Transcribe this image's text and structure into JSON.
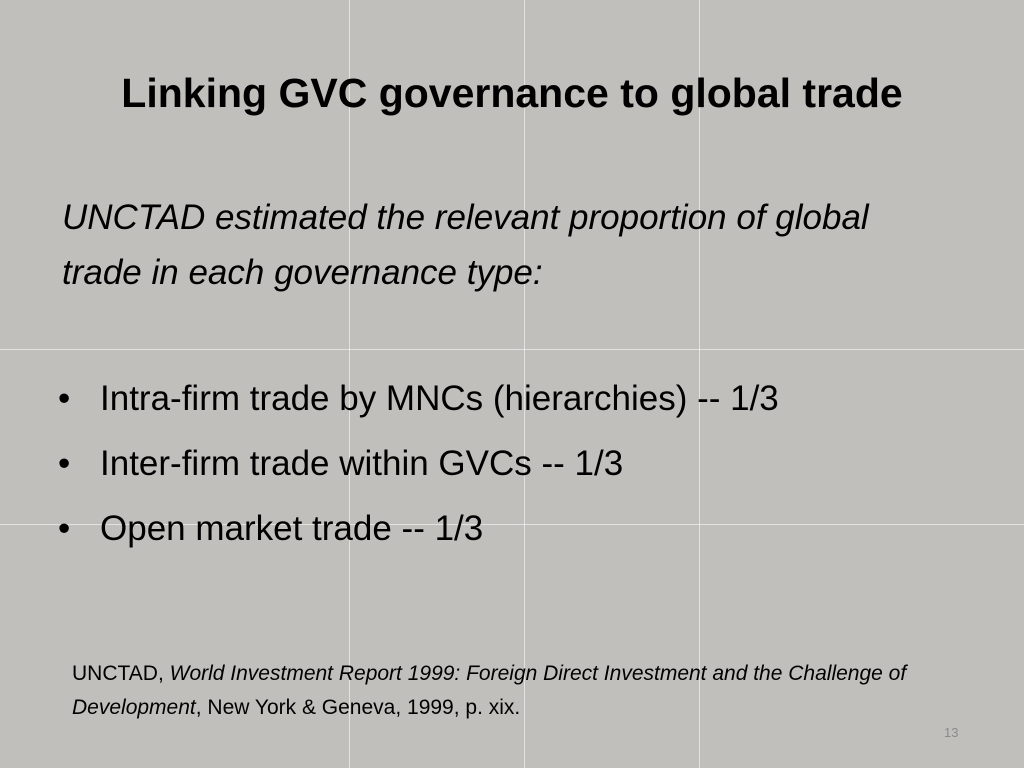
{
  "slide": {
    "title": "Linking GVC governance to global trade",
    "intro": "UNCTAD estimated the relevant proportion of global trade in each governance type:",
    "bullets": [
      "Intra-firm trade by MNCs (hierarchies) -- 1/3",
      "Inter-firm trade within GVCs -- 1/3",
      "Open market trade -- 1/3"
    ],
    "citation": {
      "author": "UNCTAD,",
      "work": "World Investment Report 1999: Foreign Direct Investment and the Challenge of Development",
      "details": ", New York & Geneva, 1999, p. xix."
    },
    "page_number": "13"
  }
}
